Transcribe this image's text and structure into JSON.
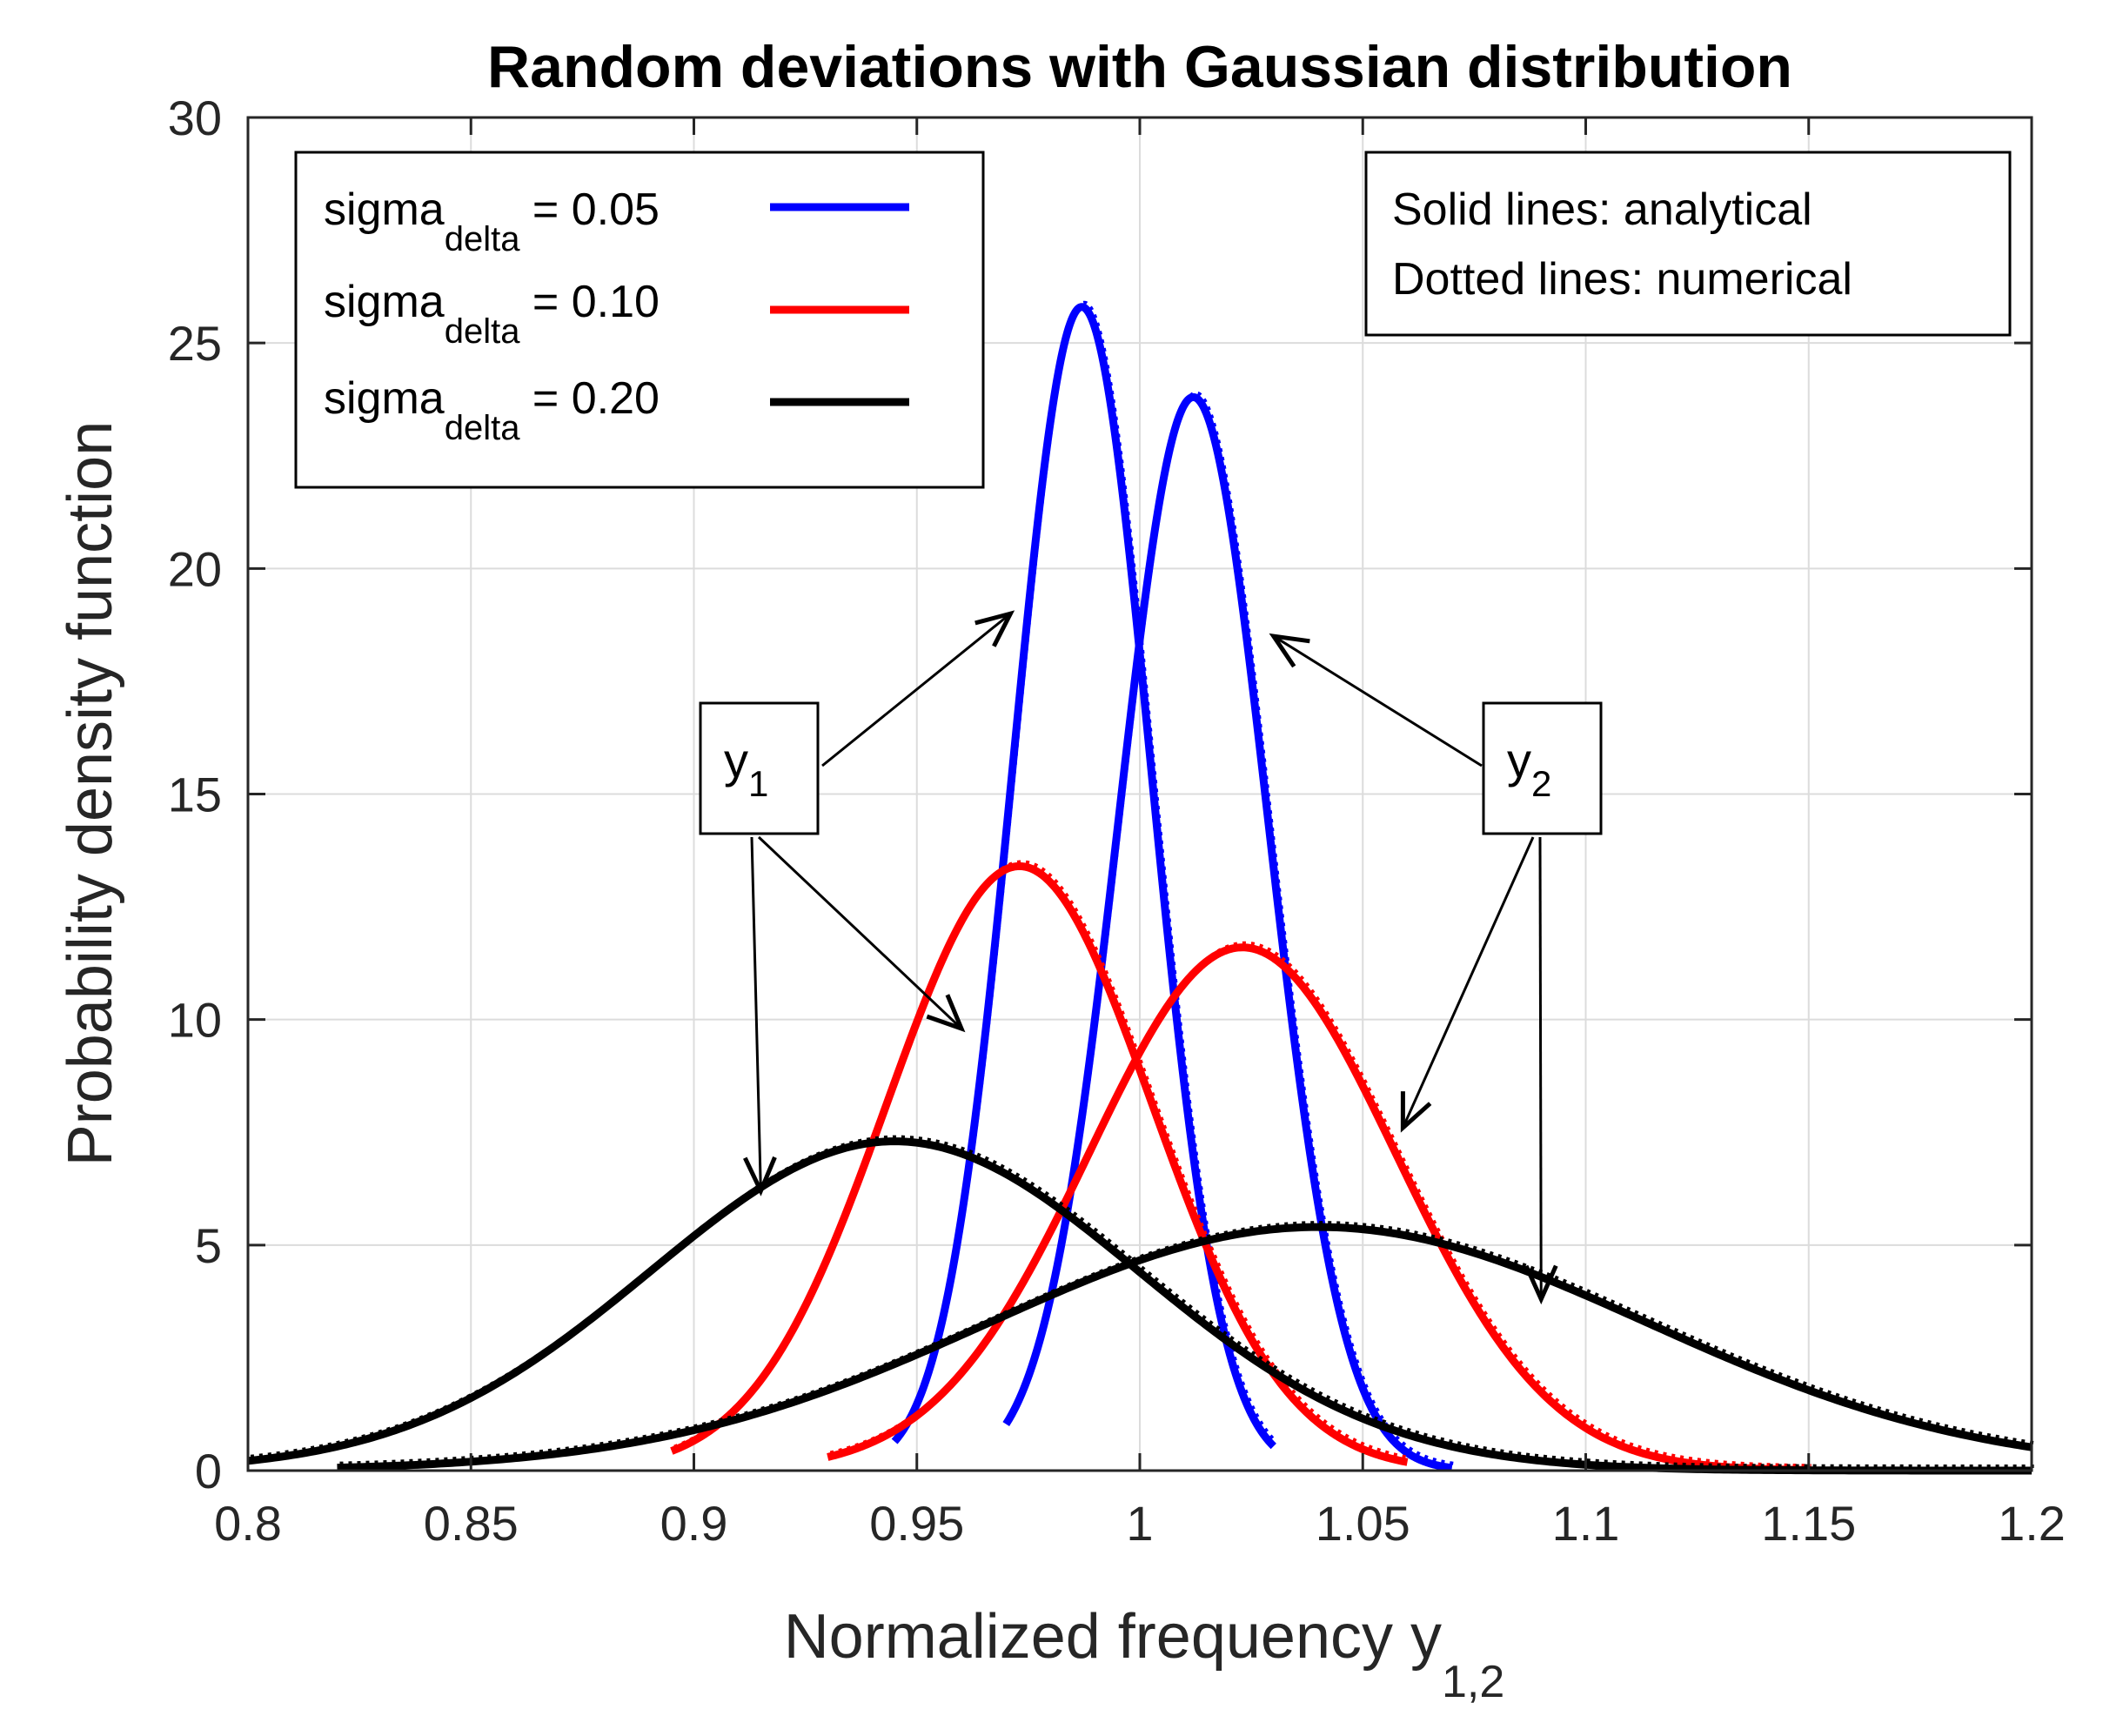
{
  "chart_data": {
    "type": "line",
    "title": "Random deviations with Gaussian distribution",
    "xlabel": "Normalized frequency y",
    "xlabel_subscript": "1,2",
    "ylabel": "Probability density function",
    "xlim": [
      0.8,
      1.2
    ],
    "ylim": [
      0,
      30
    ],
    "xticks": [
      0.8,
      0.85,
      0.9,
      0.95,
      1,
      1.05,
      1.1,
      1.15,
      1.2
    ],
    "xtick_labels": [
      "0.8",
      "0.85",
      "0.9",
      "0.95",
      "1",
      "1.05",
      "1.1",
      "1.15",
      "1.2"
    ],
    "yticks": [
      0,
      5,
      10,
      15,
      20,
      25,
      30
    ],
    "ytick_labels": [
      "0",
      "5",
      "10",
      "15",
      "20",
      "25",
      "30"
    ],
    "grid": true,
    "legend": {
      "placement": "top-left",
      "entries": [
        {
          "label_main": "sigma",
          "label_sub": "delta",
          "label_value": " = 0.05",
          "color": "#0000ff"
        },
        {
          "label_main": "sigma",
          "label_sub": "delta",
          "label_value": " = 0.10",
          "color": "#ff0000"
        },
        {
          "label_main": "sigma",
          "label_sub": "delta",
          "label_value": " = 0.20",
          "color": "#000000"
        }
      ]
    },
    "note": {
      "placement": "top-right",
      "lines": [
        "Solid lines: analytical",
        "Dotted lines: numerical"
      ]
    },
    "annotations": [
      {
        "label_main": "y",
        "label_sub": "1"
      },
      {
        "label_main": "y",
        "label_sub": "2"
      }
    ],
    "series": [
      {
        "name": "y1 sigma_delta = 0.05",
        "color": "#0000ff",
        "peak_x": 0.987,
        "peak_y": 25.8,
        "x_range": [
          0.945,
          1.03
        ]
      },
      {
        "name": "y2 sigma_delta = 0.05",
        "color": "#0000ff",
        "peak_x": 1.012,
        "peak_y": 23.8,
        "x_range": [
          0.97,
          1.07
        ]
      },
      {
        "name": "y1 sigma_delta = 0.10",
        "color": "#ff0000",
        "peak_x": 0.973,
        "peak_y": 13.4,
        "x_range": [
          0.895,
          1.06
        ]
      },
      {
        "name": "y2 sigma_delta = 0.10",
        "color": "#ff0000",
        "peak_x": 1.023,
        "peak_y": 11.6,
        "x_range": [
          0.93,
          1.15
        ]
      },
      {
        "name": "y1 sigma_delta = 0.20",
        "color": "#000000",
        "peak_x": 0.945,
        "peak_y": 7.3,
        "x_range": [
          0.8,
          1.2
        ]
      },
      {
        "name": "y2 sigma_delta = 0.20",
        "color": "#000000",
        "peak_x": 1.04,
        "peak_y": 5.4,
        "x_range": [
          0.82,
          1.2
        ]
      }
    ]
  }
}
